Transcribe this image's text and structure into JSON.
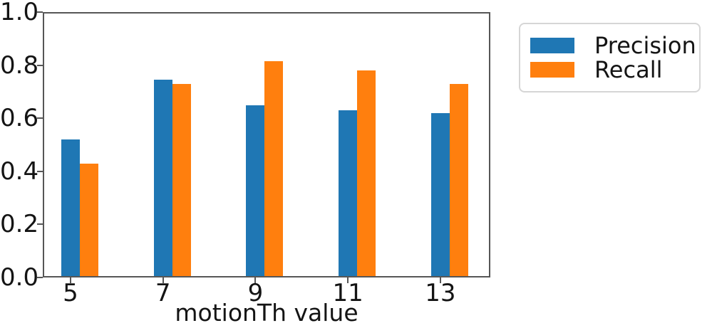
{
  "figure": {
    "background": "#ffffff",
    "spine_color": "#565656",
    "text_color": "#141414"
  },
  "chart_data": {
    "type": "bar",
    "title": "",
    "xlabel": "motionTh value",
    "ylabel": "",
    "categories": [
      "5",
      "7",
      "9",
      "11",
      "13"
    ],
    "x_values": [
      5,
      7,
      9,
      11,
      13
    ],
    "series": [
      {
        "name": "Precision",
        "color": "#1f77b4",
        "values": [
          0.52,
          0.745,
          0.65,
          0.63,
          0.62
        ]
      },
      {
        "name": "Recall",
        "color": "#ff7f0e",
        "values": [
          0.43,
          0.73,
          0.815,
          0.78,
          0.73
        ]
      }
    ],
    "bar_width": 0.4,
    "xlim": [
      4.4,
      14.08
    ],
    "ylim": [
      0,
      1
    ],
    "yticks": [
      0.0,
      0.2,
      0.4,
      0.6,
      0.8,
      1.0
    ],
    "ytick_labels": [
      "0.0",
      "0.2",
      "0.4",
      "0.6",
      "0.8",
      "1.0"
    ],
    "grid": false,
    "legend": {
      "position": "outside-upper-right",
      "entries": [
        "Precision",
        "Recall"
      ]
    }
  }
}
